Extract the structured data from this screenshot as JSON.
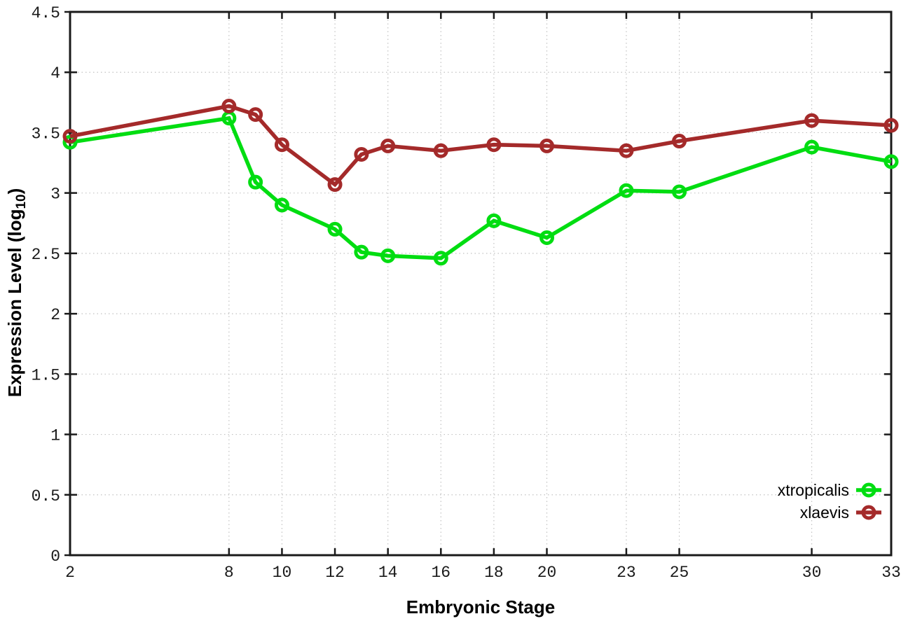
{
  "chart_data": {
    "type": "line",
    "title": "",
    "xlabel": "Embryonic Stage",
    "ylabel": {
      "prefix": "Expression Level (log",
      "sub": "10",
      "suffix": ")"
    },
    "x": [
      2,
      8,
      9,
      10,
      12,
      13,
      14,
      16,
      18,
      20,
      23,
      25,
      30,
      33
    ],
    "series": [
      {
        "name": "xtropicalis",
        "color": "#00dd11",
        "values": [
          3.42,
          3.62,
          3.09,
          2.9,
          2.7,
          2.51,
          2.48,
          2.46,
          2.77,
          2.63,
          3.02,
          3.01,
          3.38,
          3.26
        ]
      },
      {
        "name": "xlaevis",
        "color": "#a42a2a",
        "values": [
          3.47,
          3.72,
          3.65,
          3.4,
          3.07,
          3.32,
          3.39,
          3.35,
          3.4,
          3.39,
          3.35,
          3.43,
          3.6,
          3.56
        ]
      }
    ],
    "xlim": [
      2,
      33
    ],
    "ylim": [
      0,
      4.5
    ],
    "xticks": [
      2,
      8,
      10,
      12,
      14,
      16,
      18,
      20,
      23,
      25,
      30,
      33
    ],
    "xtick_labels": [
      "2",
      "8",
      "10",
      "12",
      "14",
      "16",
      "18",
      "20",
      "23",
      "25",
      "30",
      "33"
    ],
    "yticks": [
      0,
      0.5,
      1,
      1.5,
      2,
      2.5,
      3,
      3.5,
      4,
      4.5
    ],
    "ytick_labels": [
      "0",
      "0.5",
      "1",
      "1.5",
      "2",
      "2.5",
      "3",
      "3.5",
      "4",
      "4.5"
    ],
    "grid": true,
    "legend_position": "bottom-right",
    "legend": [
      "xtropicalis",
      "xlaevis"
    ]
  },
  "colors": {
    "background": "#ffffff",
    "border": "#1a1a1a",
    "grid": "#c2c2c2",
    "tick": "#1a1a1a",
    "text": "#1a1a1a"
  }
}
